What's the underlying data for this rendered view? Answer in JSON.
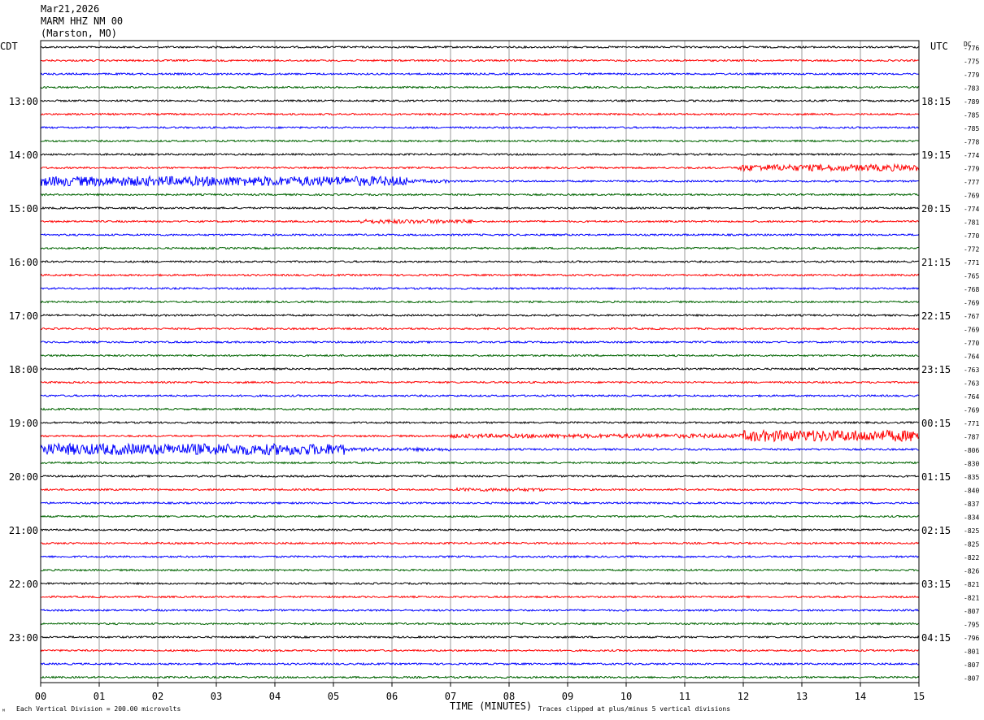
{
  "header": {
    "date": "Mar21,2026",
    "station": "MARM HHZ NM 00",
    "location": "(Marston, MO)"
  },
  "left_axis": {
    "title": "CDT"
  },
  "right_axis": {
    "title": "UTC",
    "dc_title": "DC"
  },
  "footer": {
    "mark": "ᴹ",
    "scale": "Each Vertical Division =  200.00 microvolts",
    "xlabel": "TIME (MINUTES)",
    "clip": "Traces clipped at plus/minus 5 vertical divisions"
  },
  "chart_data": {
    "type": "line",
    "title": "MARM HHZ NM 00",
    "xlabel": "TIME (MINUTES)",
    "xlim": [
      0,
      15
    ],
    "x_ticks": [
      "00",
      "01",
      "02",
      "03",
      "04",
      "05",
      "06",
      "07",
      "08",
      "09",
      "10",
      "11",
      "12",
      "13",
      "14",
      "15"
    ],
    "grid": "vertical",
    "trace_count": 48,
    "minutes_per_trace": 15,
    "trace_colors": [
      "#000000",
      "#ff0000",
      "#0000ff",
      "#006400"
    ],
    "left_time_labels": [
      "13:00",
      "14:00",
      "15:00",
      "16:00",
      "17:00",
      "18:00",
      "19:00",
      "20:00",
      "21:00",
      "22:00",
      "23:00"
    ],
    "right_time_labels": [
      "18:15",
      "19:15",
      "20:15",
      "21:15",
      "22:15",
      "23:15",
      "00:15",
      "01:15",
      "02:15",
      "03:15",
      "04:15"
    ],
    "dc_offsets": [
      -776,
      -775,
      -779,
      -783,
      -789,
      -785,
      -785,
      -778,
      -774,
      -779,
      -777,
      -769,
      -774,
      -781,
      -770,
      -772,
      -771,
      -765,
      -768,
      -769,
      -767,
      -769,
      -770,
      -764,
      -763,
      -763,
      -764,
      -769,
      -771,
      -787,
      -806,
      -830,
      -835,
      -840,
      -837,
      -834,
      -825,
      -825,
      -822,
      -826,
      -821,
      -821,
      -807,
      -795,
      -796,
      -801,
      -807,
      -807
    ],
    "events": [
      {
        "trace": 9,
        "start": 11.9,
        "end": 15,
        "amp": 4
      },
      {
        "trace": 10,
        "start": 0,
        "end": 6.3,
        "amp": 6
      },
      {
        "trace": 10,
        "start": 6.3,
        "end": 7.0,
        "amp": 2
      },
      {
        "trace": 13,
        "start": 5.4,
        "end": 7.4,
        "amp": 2.5
      },
      {
        "trace": 29,
        "start": 7.0,
        "end": 12.0,
        "amp": 2.5
      },
      {
        "trace": 29,
        "start": 12.0,
        "end": 15,
        "amp": 7
      },
      {
        "trace": 30,
        "start": 0,
        "end": 5.2,
        "amp": 7
      },
      {
        "trace": 30,
        "start": 5.2,
        "end": 7.0,
        "amp": 2
      },
      {
        "trace": 33,
        "start": 7.1,
        "end": 8.6,
        "amp": 2
      }
    ]
  }
}
